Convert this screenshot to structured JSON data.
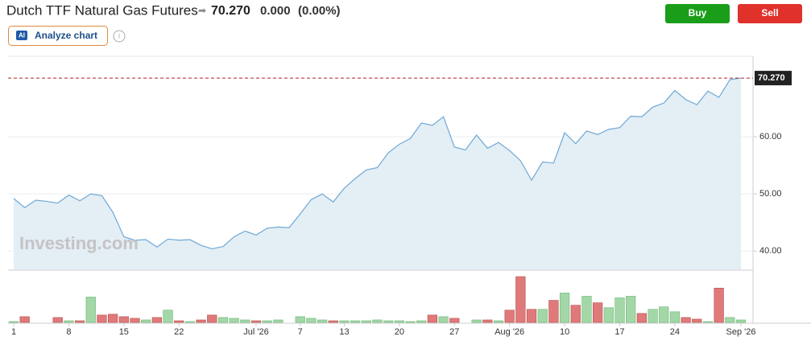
{
  "header": {
    "title": "Dutch TTF Natural Gas Futures",
    "price": "70.270",
    "change": "0.000",
    "change_pct": "(0.00%)",
    "buy": "Buy",
    "sell": "Sell",
    "analyze": "Analyze chart",
    "ai": "AI"
  },
  "chart_data": {
    "type": "area",
    "watermark": "Investing.com",
    "categories": [
      "1",
      null,
      null,
      null,
      null,
      "8",
      null,
      null,
      null,
      null,
      "15",
      null,
      null,
      null,
      null,
      "22",
      null,
      null,
      null,
      null,
      null,
      null,
      "Jul '26",
      null,
      null,
      null,
      "7",
      null,
      null,
      null,
      "13",
      null,
      null,
      null,
      null,
      "20",
      null,
      null,
      null,
      null,
      "27",
      null,
      null,
      null,
      null,
      "Aug '26",
      null,
      null,
      null,
      null,
      "10",
      null,
      null,
      null,
      null,
      "17",
      null,
      null,
      null,
      null,
      "24",
      null,
      null,
      null,
      null,
      null,
      "Sep '26"
    ],
    "series": [
      {
        "name": "Price",
        "color": "#6fa8d6",
        "fill": "#e3eef5",
        "values": [
          49.2,
          47.6,
          48.9,
          48.7,
          48.4,
          49.8,
          48.8,
          50.0,
          49.7,
          46.8,
          42.5,
          41.9,
          42.0,
          40.7,
          42.1,
          41.9,
          42.0,
          41.0,
          40.4,
          40.8,
          42.5,
          43.5,
          42.8,
          44.0,
          44.2,
          44.1,
          46.5,
          49.0,
          50.0,
          48.6,
          51.0,
          52.7,
          54.2,
          54.6,
          57.2,
          58.7,
          59.7,
          62.4,
          62.0,
          63.5,
          58.2,
          57.7,
          60.3,
          58.0,
          59.0,
          57.6,
          55.8,
          52.4,
          55.6,
          55.4,
          60.7,
          58.8,
          61.0,
          60.4,
          61.3,
          61.6,
          63.6,
          63.5,
          65.2,
          65.9,
          68.1,
          66.5,
          65.6,
          68.0,
          66.9,
          70.0,
          70.27
        ],
        "value_labels_last": "70.270"
      },
      {
        "name": "Volume",
        "up_color": "#a3d7a8",
        "down_color": "#e07a7a",
        "values": [
          1,
          7,
          0,
          0,
          6,
          2,
          2,
          31,
          9,
          10,
          7,
          5,
          3,
          6,
          15,
          2,
          1,
          3,
          9,
          6,
          5,
          3,
          2,
          2,
          3,
          0,
          7,
          5,
          3,
          2,
          2,
          2,
          2,
          3,
          2,
          2,
          1,
          2,
          9,
          7,
          5,
          0,
          3,
          3,
          2,
          15,
          56,
          16,
          16,
          27,
          36,
          21,
          32,
          24,
          18,
          30,
          32,
          11,
          16,
          19,
          13,
          6,
          4,
          1,
          42,
          6,
          3
        ]
      }
    ],
    "ylim": [
      36.8,
      73.8
    ],
    "yticks": [
      {
        "value": 40,
        "label": "40.00"
      },
      {
        "value": 50,
        "label": "50.00"
      },
      {
        "value": 60,
        "label": "60.00"
      }
    ],
    "vol_ylim": [
      0,
      60
    ],
    "last_label": "70.270",
    "last_color": "#b22222"
  }
}
